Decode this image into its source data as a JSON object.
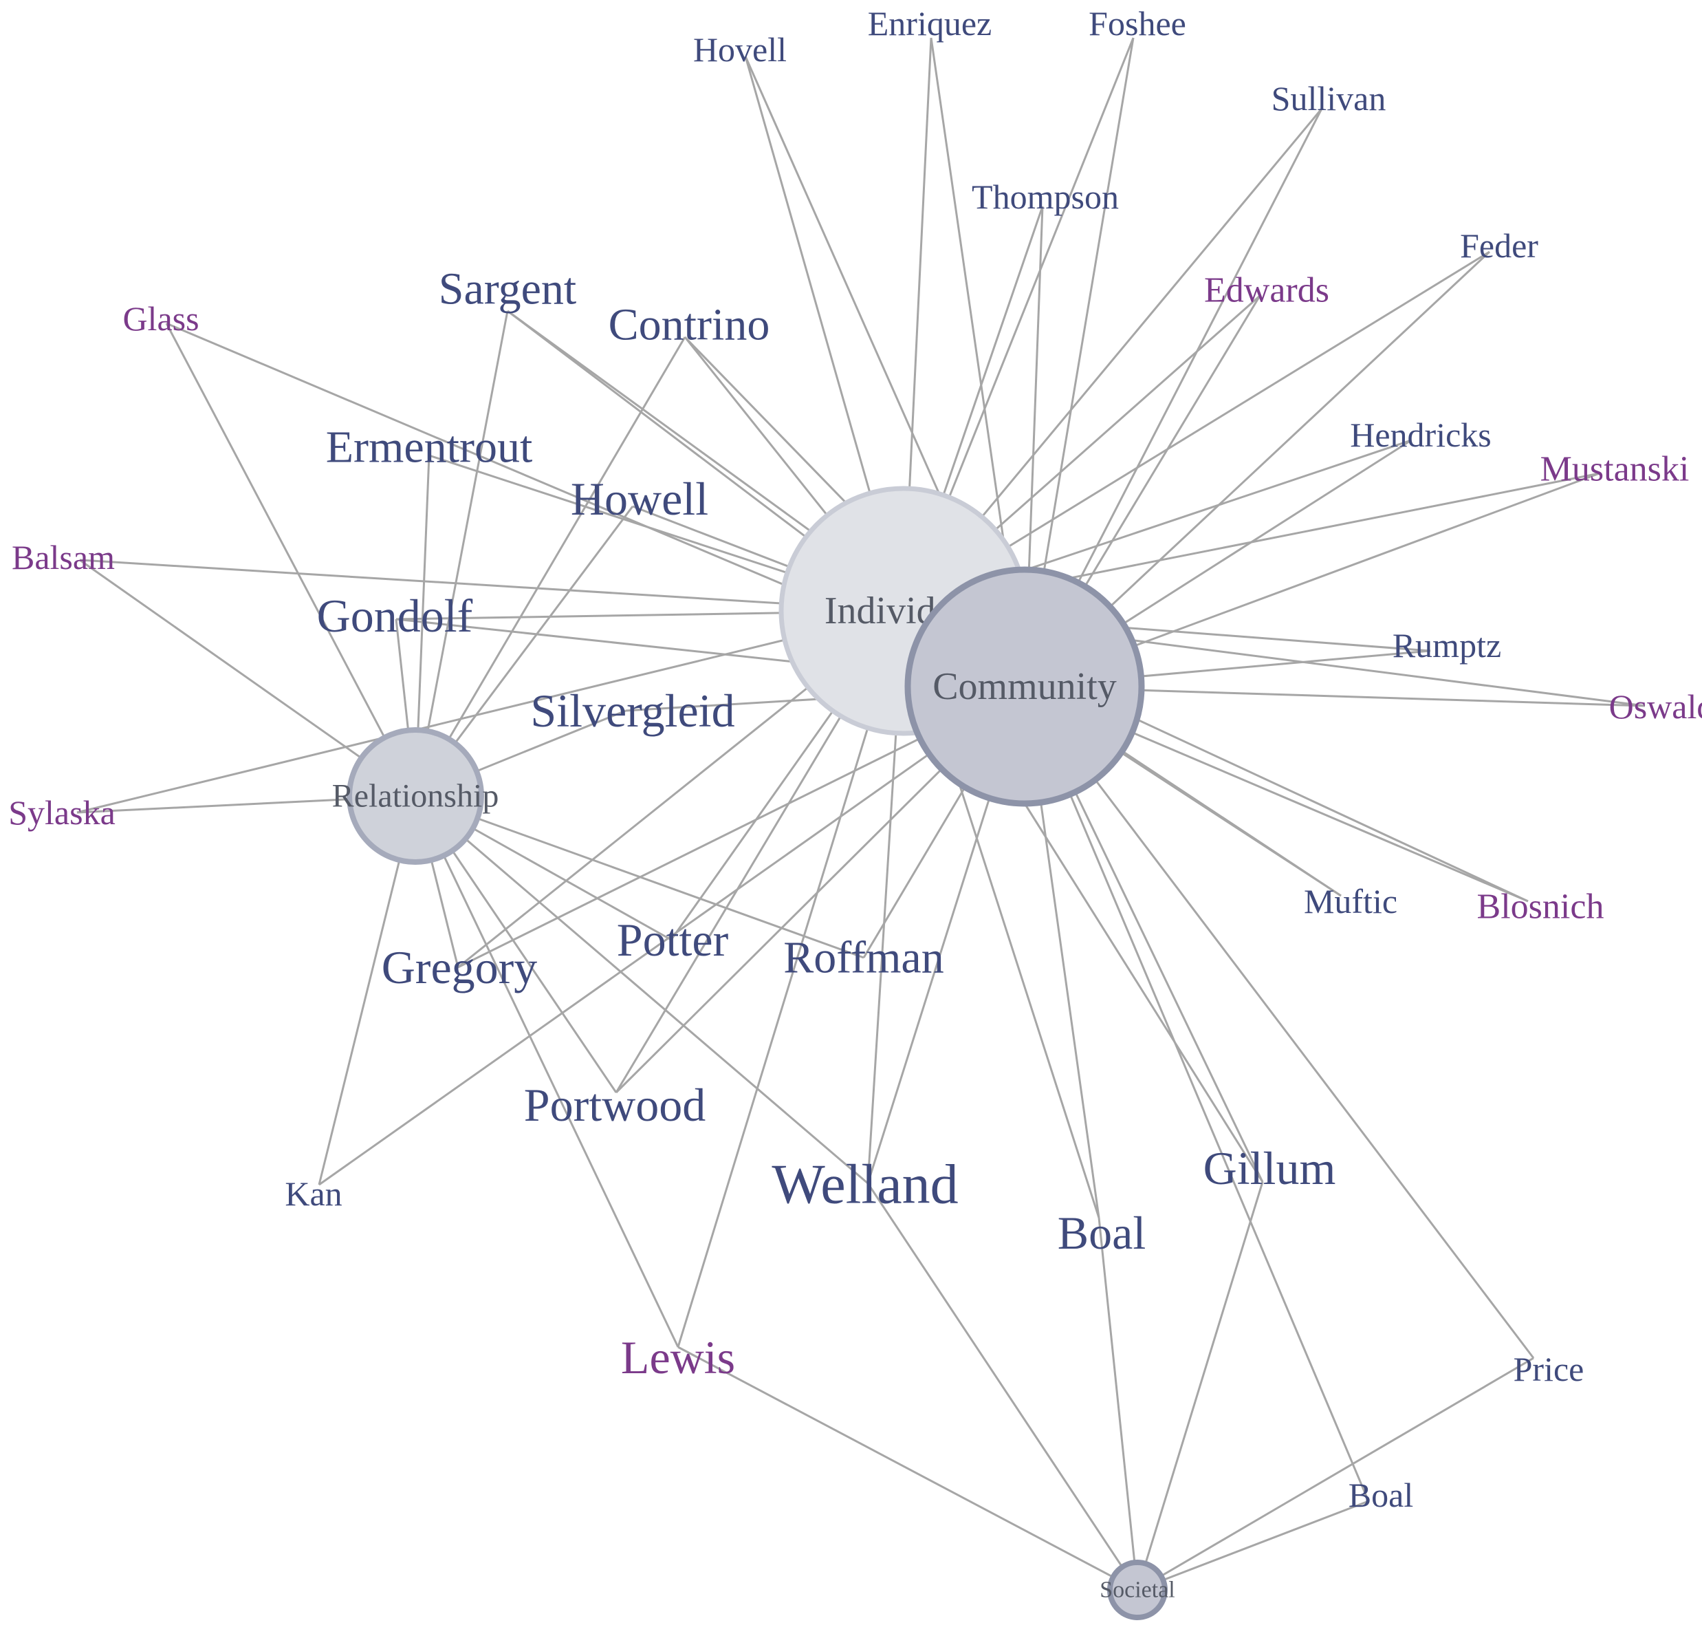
{
  "colors": {
    "edge": "#a6a6a6",
    "author_blue": "#3f4a7c",
    "author_purple": "#7b3a8a",
    "hub_label": "#555a66"
  },
  "hubs": [
    {
      "id": "individual",
      "label": "Individual",
      "fill": "#e0e2e7",
      "stroke": "#c9ccd6"
    },
    {
      "id": "community",
      "label": "Community",
      "fill": "#c4c6d2",
      "stroke": "#8d93a8"
    },
    {
      "id": "relationship",
      "label": "Relationship",
      "fill": "#cfd2da",
      "stroke": "#a5aabb"
    },
    {
      "id": "societal",
      "label": "Societal",
      "fill": "#c4c6d2",
      "stroke": "#8d93a8"
    }
  ],
  "authors": [
    {
      "id": "hovell",
      "label": "Hovell",
      "color": "blue",
      "links": [
        "individual",
        "community"
      ]
    },
    {
      "id": "enriquez",
      "label": "Enriquez",
      "color": "blue",
      "links": [
        "individual",
        "community"
      ]
    },
    {
      "id": "foshee",
      "label": "Foshee",
      "color": "blue",
      "links": [
        "individual",
        "community"
      ]
    },
    {
      "id": "sullivan",
      "label": "Sullivan",
      "color": "blue",
      "links": [
        "individual",
        "community"
      ]
    },
    {
      "id": "thompson",
      "label": "Thompson",
      "color": "blue",
      "links": [
        "individual",
        "community"
      ]
    },
    {
      "id": "feder",
      "label": "Feder",
      "color": "blue",
      "links": [
        "individual",
        "community"
      ]
    },
    {
      "id": "edwards",
      "label": "Edwards",
      "color": "purple",
      "links": [
        "individual",
        "community"
      ]
    },
    {
      "id": "glass",
      "label": "Glass",
      "color": "purple",
      "links": [
        "community",
        "relationship"
      ]
    },
    {
      "id": "sargent",
      "label": "Sargent",
      "color": "blue",
      "links": [
        "individual",
        "community",
        "relationship"
      ]
    },
    {
      "id": "contrino",
      "label": "Contrino",
      "color": "blue",
      "links": [
        "individual",
        "community",
        "relationship"
      ]
    },
    {
      "id": "ermentrout",
      "label": "Ermentrout",
      "color": "blue",
      "links": [
        "individual",
        "relationship"
      ]
    },
    {
      "id": "howell",
      "label": "Howell",
      "color": "blue",
      "links": [
        "individual",
        "relationship"
      ]
    },
    {
      "id": "hendricks",
      "label": "Hendricks",
      "color": "blue",
      "links": [
        "individual",
        "community"
      ]
    },
    {
      "id": "mustanski",
      "label": "Mustanski",
      "color": "purple",
      "links": [
        "individual",
        "community"
      ]
    },
    {
      "id": "balsam",
      "label": "Balsam",
      "color": "purple",
      "links": [
        "individual",
        "relationship"
      ]
    },
    {
      "id": "gondolf",
      "label": "Gondolf",
      "color": "blue",
      "links": [
        "individual",
        "community",
        "relationship"
      ]
    },
    {
      "id": "rumptz",
      "label": "Rumptz",
      "color": "blue",
      "links": [
        "individual",
        "community"
      ]
    },
    {
      "id": "oswald",
      "label": "Oswald",
      "color": "purple",
      "links": [
        "individual",
        "community"
      ]
    },
    {
      "id": "silvergleid",
      "label": "Silvergleid",
      "color": "blue",
      "links": [
        "community",
        "relationship"
      ]
    },
    {
      "id": "sylaska",
      "label": "Sylaska",
      "color": "purple",
      "links": [
        "individual",
        "relationship"
      ]
    },
    {
      "id": "muftic",
      "label": "Muftic",
      "color": "blue",
      "links": [
        "individual",
        "community"
      ]
    },
    {
      "id": "blosnich",
      "label": "Blosnich",
      "color": "purple",
      "links": [
        "individual",
        "community"
      ]
    },
    {
      "id": "gregory",
      "label": "Gregory",
      "color": "blue",
      "links": [
        "individual",
        "community",
        "relationship"
      ]
    },
    {
      "id": "potter",
      "label": "Potter",
      "color": "blue",
      "links": [
        "individual",
        "relationship"
      ]
    },
    {
      "id": "roffman",
      "label": "Roffman",
      "color": "blue",
      "links": [
        "community",
        "relationship"
      ]
    },
    {
      "id": "portwood",
      "label": "Portwood",
      "color": "blue",
      "links": [
        "individual",
        "community",
        "relationship"
      ]
    },
    {
      "id": "kan",
      "label": "Kan",
      "color": "blue",
      "links": [
        "community",
        "relationship"
      ]
    },
    {
      "id": "welland",
      "label": "Welland",
      "color": "blue",
      "links": [
        "individual",
        "community",
        "relationship",
        "societal"
      ]
    },
    {
      "id": "boal_mid",
      "label": "Boal",
      "color": "blue",
      "links": [
        "individual",
        "community",
        "societal"
      ]
    },
    {
      "id": "gillum",
      "label": "Gillum",
      "color": "blue",
      "links": [
        "individual",
        "community",
        "societal"
      ]
    },
    {
      "id": "lewis",
      "label": "Lewis",
      "color": "purple",
      "links": [
        "individual",
        "relationship",
        "societal"
      ]
    },
    {
      "id": "price",
      "label": "Price",
      "color": "blue",
      "links": [
        "community",
        "societal"
      ]
    },
    {
      "id": "boal_low",
      "label": "Boal",
      "color": "blue",
      "links": [
        "community",
        "societal"
      ]
    }
  ]
}
